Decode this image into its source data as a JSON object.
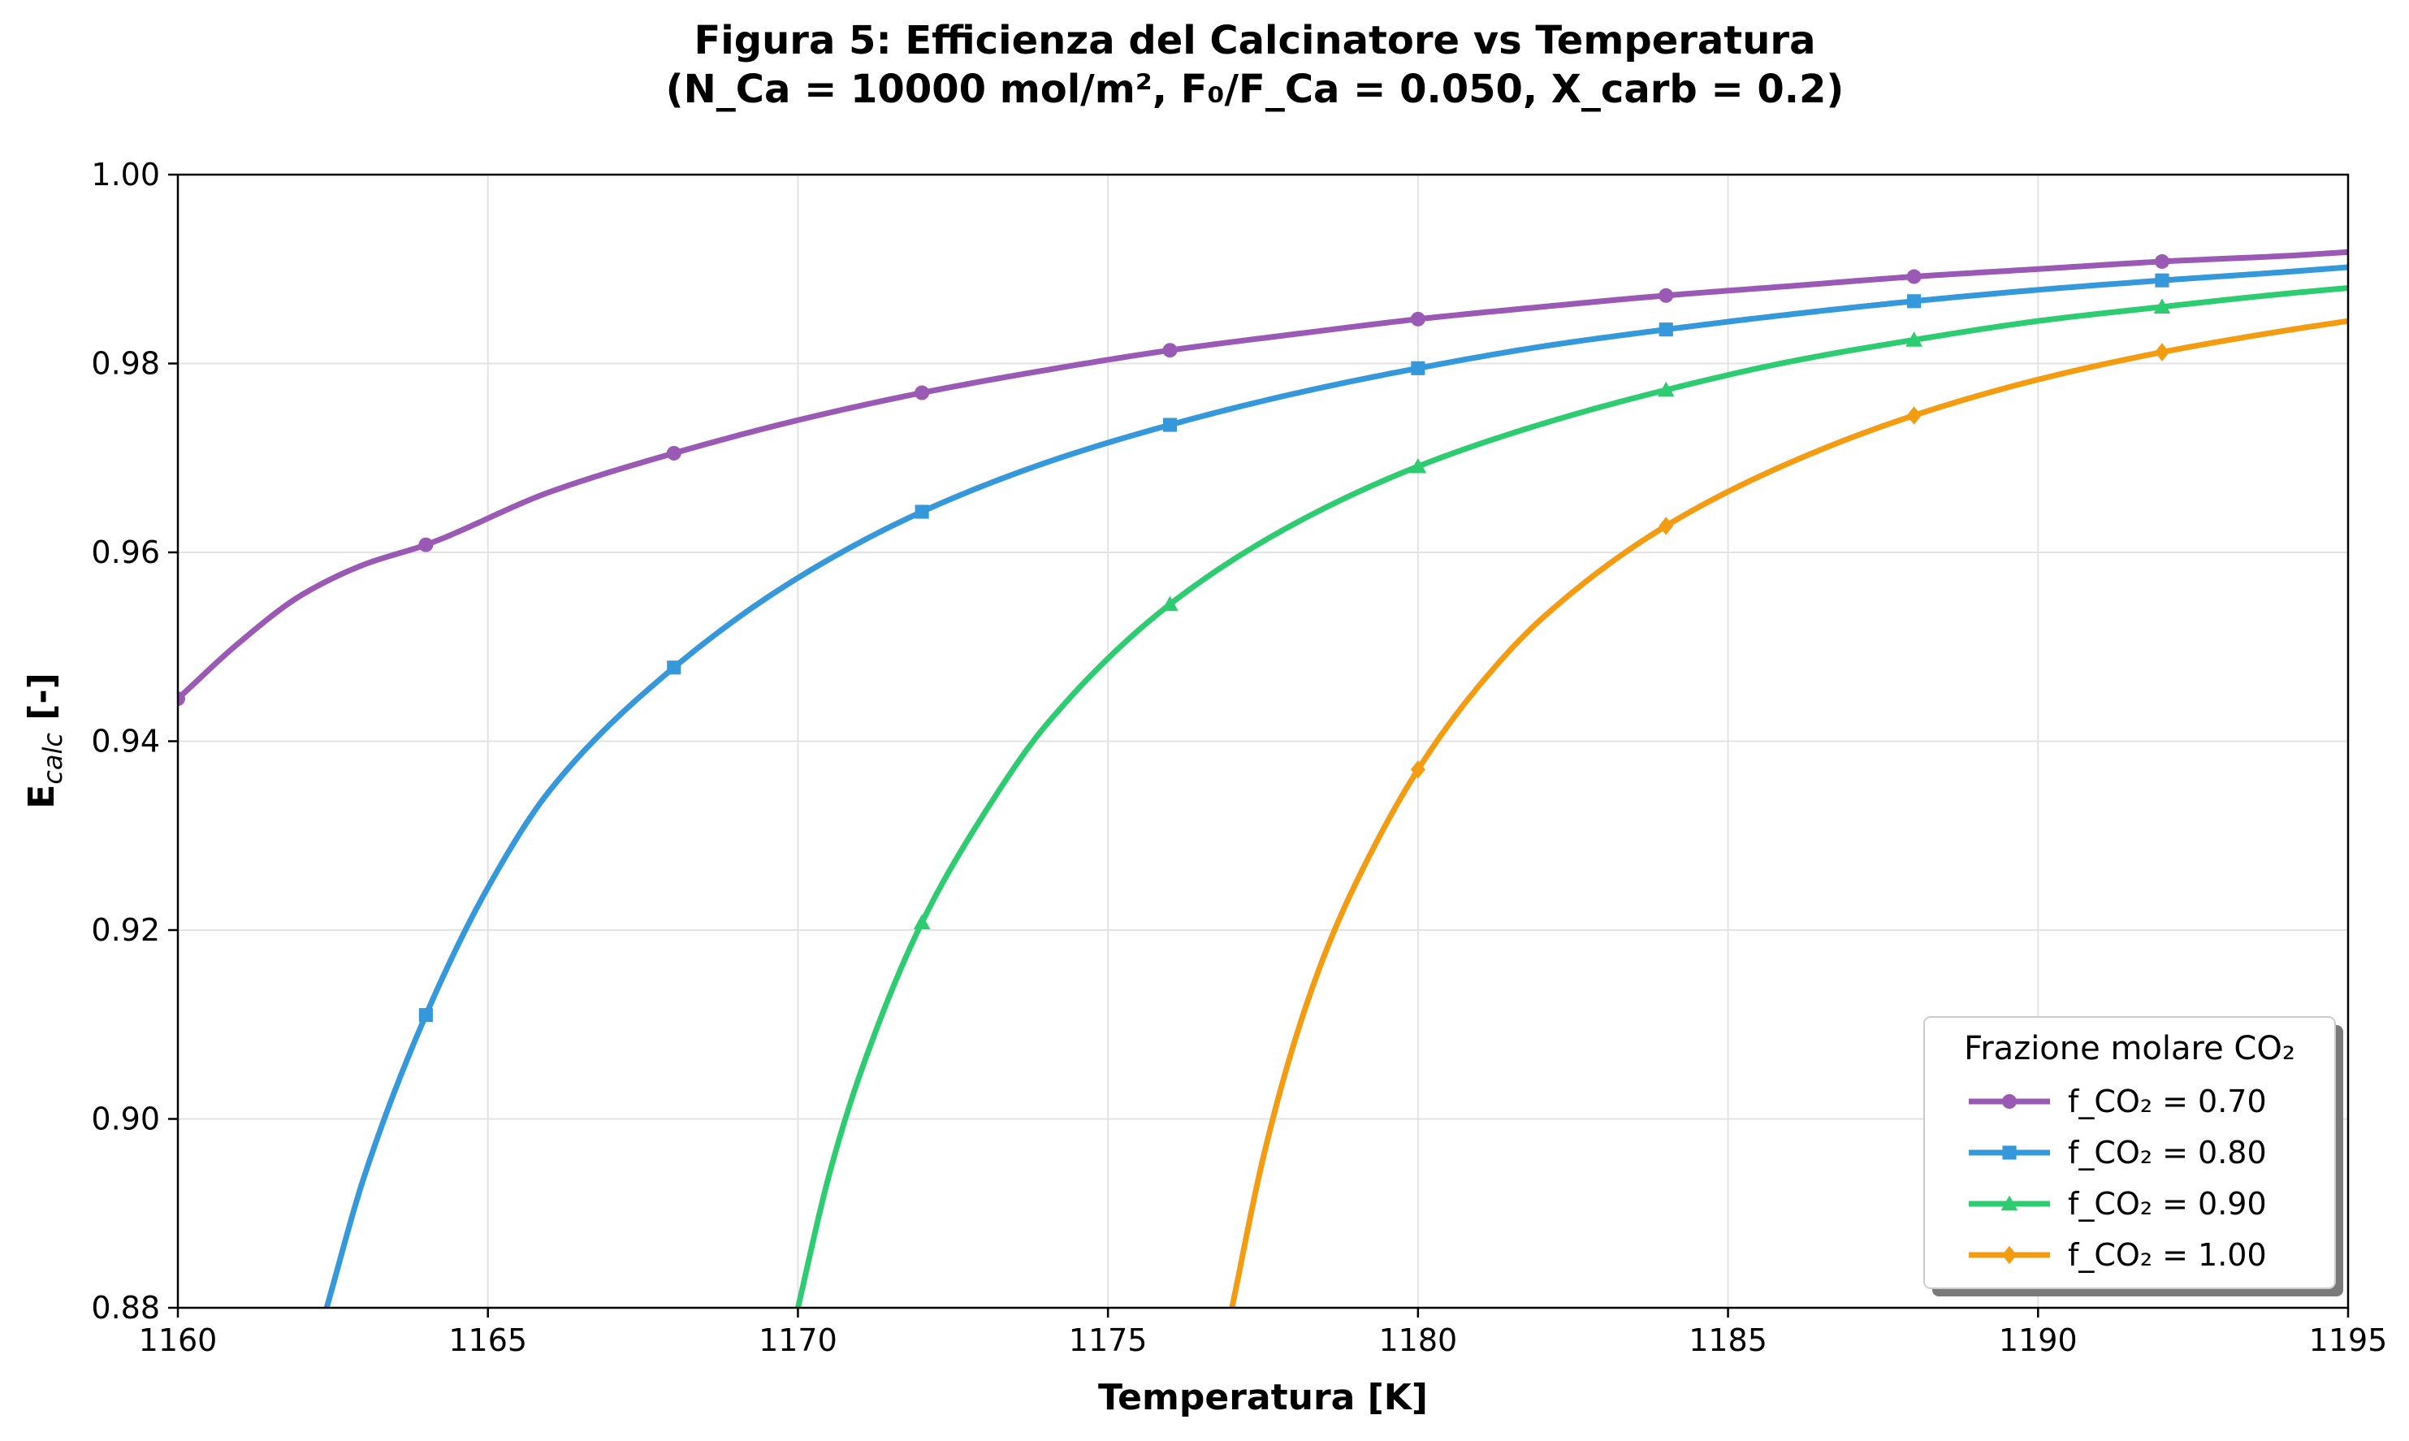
{
  "chart_data": {
    "type": "line",
    "title": "Figura 5: Efficienza del Calcinatore vs Temperatura",
    "subtitle": "(N_Ca = 10000 mol/m², F₀/F_Ca = 0.050, X_carb = 0.2)",
    "xlabel": "Temperatura [K]",
    "ylabel_main": "E",
    "ylabel_sub": "calc",
    "ylabel_suffix": " [-]",
    "xlim": [
      1160,
      1195
    ],
    "ylim": [
      0.88,
      1.0
    ],
    "xticks": [
      1160,
      1165,
      1170,
      1175,
      1180,
      1185,
      1190,
      1195
    ],
    "yticks": [
      0.88,
      0.9,
      0.92,
      0.94,
      0.96,
      0.98,
      1.0
    ],
    "xtick_labels": [
      "1160",
      "1165",
      "1170",
      "1175",
      "1180",
      "1185",
      "1190",
      "1195"
    ],
    "ytick_labels": [
      "0.88",
      "0.90",
      "0.92",
      "0.94",
      "0.96",
      "0.98",
      "1.00"
    ],
    "grid": true,
    "legend": {
      "title": "Frazione molare CO₂",
      "placement": "lower-right"
    },
    "series": [
      {
        "name": "f_CO₂ = 0.70",
        "color": "#9b59b6",
        "marker": "circle",
        "x": [
          1160,
          1161,
          1162,
          1163,
          1164,
          1166,
          1168,
          1170,
          1172,
          1174,
          1176,
          1178,
          1180,
          1182,
          1184,
          1186,
          1188,
          1190,
          1192,
          1194,
          1195
        ],
        "y": [
          0.9445,
          0.9505,
          0.9555,
          0.9587,
          0.9608,
          0.9664,
          0.9705,
          0.974,
          0.9769,
          0.9793,
          0.9814,
          0.9831,
          0.9847,
          0.986,
          0.9872,
          0.9882,
          0.9892,
          0.99,
          0.9908,
          0.9914,
          0.9918
        ],
        "marker_x": [
          1160,
          1164,
          1168,
          1172,
          1176,
          1180,
          1184,
          1188,
          1192
        ]
      },
      {
        "name": "f_CO₂ = 0.80",
        "color": "#3498db",
        "marker": "square",
        "x": [
          1162.4,
          1163,
          1164,
          1165,
          1166,
          1168,
          1170,
          1172,
          1174,
          1176,
          1178,
          1180,
          1182,
          1184,
          1186,
          1188,
          1190,
          1192,
          1194,
          1195
        ],
        "y": [
          0.88,
          0.8938,
          0.911,
          0.9245,
          0.9348,
          0.9478,
          0.9573,
          0.9643,
          0.9695,
          0.9735,
          0.9768,
          0.9795,
          0.9818,
          0.9836,
          0.9852,
          0.9866,
          0.9878,
          0.9888,
          0.9897,
          0.9902
        ],
        "marker_x": [
          1164,
          1168,
          1172,
          1176,
          1180,
          1184,
          1188,
          1192
        ]
      },
      {
        "name": "f_CO₂ = 0.90",
        "color": "#2ecc71",
        "marker": "triangle",
        "x": [
          1170,
          1170.5,
          1171,
          1172,
          1173,
          1174,
          1176,
          1178,
          1180,
          1182,
          1184,
          1186,
          1188,
          1190,
          1192,
          1194,
          1195
        ],
        "y": [
          0.88,
          0.894,
          0.9047,
          0.9208,
          0.9323,
          0.9417,
          0.9545,
          0.963,
          0.9691,
          0.9736,
          0.9772,
          0.9802,
          0.9825,
          0.9845,
          0.986,
          0.9874,
          0.988
        ],
        "marker_x": [
          1172,
          1176,
          1180,
          1184,
          1188,
          1192
        ]
      },
      {
        "name": "f_CO₂ = 1.00",
        "color": "#f39c12",
        "marker": "diamond",
        "x": [
          1177,
          1177.5,
          1178,
          1178.5,
          1179,
          1180,
          1181,
          1182,
          1184,
          1186,
          1188,
          1190,
          1192,
          1194,
          1195
        ],
        "y": [
          0.88,
          0.8958,
          0.908,
          0.9175,
          0.925,
          0.937,
          0.946,
          0.953,
          0.9628,
          0.9695,
          0.9745,
          0.9783,
          0.9812,
          0.9835,
          0.9845
        ],
        "marker_x": [
          1180,
          1184,
          1188,
          1192
        ]
      }
    ]
  }
}
